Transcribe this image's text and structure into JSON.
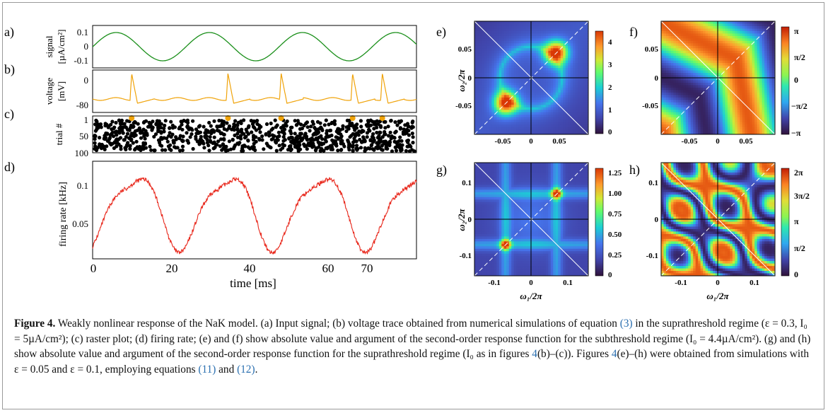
{
  "panels": {
    "a": {
      "tag": "a)",
      "ylabel_line1": "signal",
      "ylabel_line2": "[µA/cm²]",
      "yticks": [
        "0.1",
        "0",
        "-0.1"
      ],
      "color": "#1a8f1a",
      "series": {
        "period_ms": 21,
        "amplitude": 0.1,
        "phase_peak_ms": 5.3
      }
    },
    "b": {
      "tag": "b)",
      "ylabel_line1": "voltage",
      "ylabel_line2": "[mV]",
      "yticks": [
        "0",
        "-80"
      ],
      "color": "#f0a30a",
      "spike_times_ms": [
        8.8,
        30.5,
        42.5,
        58.6,
        65.3
      ]
    },
    "c": {
      "tag": "c)",
      "ylabel": "trial #",
      "yticks": [
        "1",
        "50",
        "100"
      ],
      "dot_color": "#000000",
      "marker_color": "#f0a30a",
      "marker_times_ms": [
        8.8,
        30.5,
        42.5,
        58.6,
        65.3
      ]
    },
    "d": {
      "tag": "d)",
      "ylabel": "firing rate [kHz]",
      "yticks": [
        "0.1",
        "0.05"
      ],
      "xticks": [
        "0",
        "20",
        "40",
        "60",
        "70"
      ],
      "xlabel": "time [ms]",
      "color": "#e8261a"
    },
    "e": {
      "tag": "e)",
      "ylabel": "ω₂/2π",
      "yticks": [
        "0.05",
        "0",
        "-0.05"
      ],
      "xticks": [
        "-0.05",
        "0",
        "0.05"
      ],
      "colorbar_ticks": [
        "4",
        "3",
        "2",
        "1",
        "0"
      ]
    },
    "f": {
      "tag": "f)",
      "yticks": [
        "0.05",
        "0",
        "-0.05"
      ],
      "xticks": [
        "-0.05",
        "0",
        "0.05"
      ],
      "colorbar_ticks": [
        "π",
        "π/2",
        "0",
        "−π/2",
        "−π"
      ]
    },
    "g": {
      "tag": "g)",
      "ylabel": "ω₂/2π",
      "yticks": [
        "0.1",
        "0",
        "-0.1"
      ],
      "xticks": [
        "-0.1",
        "0",
        "0.1"
      ],
      "xlabel": "ω₁/2π",
      "colorbar_ticks": [
        "1.25",
        "1.00",
        "0.75",
        "0.50",
        "0.25",
        "0"
      ]
    },
    "h": {
      "tag": "h)",
      "yticks": [
        "0.1",
        "0",
        "-0.1"
      ],
      "xticks": [
        "-0.1",
        "0",
        "0.1"
      ],
      "xlabel": "ω₁/2π",
      "colorbar_ticks": [
        "2π",
        "3π/2",
        "π",
        "π/2",
        "0"
      ]
    }
  },
  "time_axis_ms": {
    "min": 0,
    "max": 73
  },
  "caption": {
    "label": "Figure 4.",
    "seg1": " Weakly nonlinear response of the NaK model. (a) Input signal; (b) voltage trace obtained from numerical simulations of equation ",
    "ref_eq3": "(3)",
    "seg2": " in the suprathreshold regime (ε = 0.3, I₀ = 5µA/cm²); (c) raster plot; (d) firing rate; (e) and (f) show absolute value and argument of the second-order response function for the subthreshold regime (I₀ = 4.4µA/cm²). (g) and (h) show absolute value and argument of the second-order response function for the suprathreshold regime (I₀ as in figures ",
    "ref_fig_a": "4",
    "seg3": "(b)–(c)). Figures ",
    "ref_fig_b": "4",
    "seg4": "(e)–(h) were obtained from simulations with ε = 0.05 and ε = 0.1, employing equations ",
    "ref_eq11": "(11)",
    "seg5": " and ",
    "ref_eq12": "(12)",
    "seg6": "."
  }
}
